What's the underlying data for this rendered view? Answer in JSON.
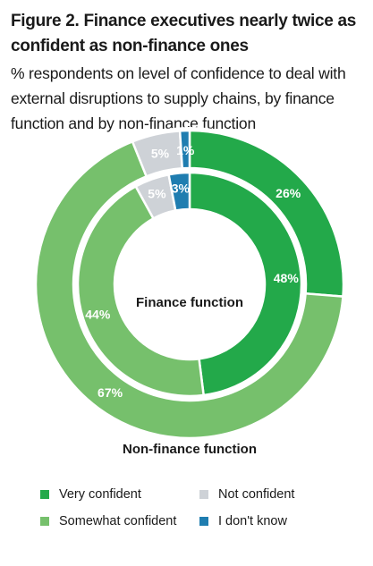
{
  "header": {
    "title": "Figure 2. Finance executives nearly twice as confident as non-finance ones",
    "subtitle": "% respondents on level of confidence to deal with external disruptions to supply chains, by finance function and by non-finance function"
  },
  "chart_data": {
    "type": "donut",
    "title": "Figure 2. Finance executives nearly twice as confident as non-finance ones",
    "subtitle": "% respondents on level of confidence to deal with external disruptions to supply chains, by finance function and by non-finance function",
    "categories": [
      "Very confident",
      "Somewhat confident",
      "Not confident",
      "I don't know"
    ],
    "colors": [
      "#23a94a",
      "#76c06c",
      "#ced2d7",
      "#1f7db0"
    ],
    "series": [
      {
        "name": "Finance function",
        "ring": "inner",
        "values": [
          48,
          44,
          5,
          3
        ],
        "labels": [
          "48%",
          "44%",
          "5%",
          "3%"
        ]
      },
      {
        "name": "Non-finance function",
        "ring": "outer",
        "values": [
          26,
          67,
          5,
          1
        ],
        "labels": [
          "26%",
          "67%",
          "5%",
          "1%"
        ]
      }
    ],
    "legend": [
      {
        "label": "Very confident",
        "color": "#23a94a"
      },
      {
        "label": "Not confident",
        "color": "#ced2d7"
      },
      {
        "label": "Somewhat confident",
        "color": "#76c06c"
      },
      {
        "label": "I don't know",
        "color": "#1f7db0"
      }
    ],
    "legend_position": "bottom"
  }
}
